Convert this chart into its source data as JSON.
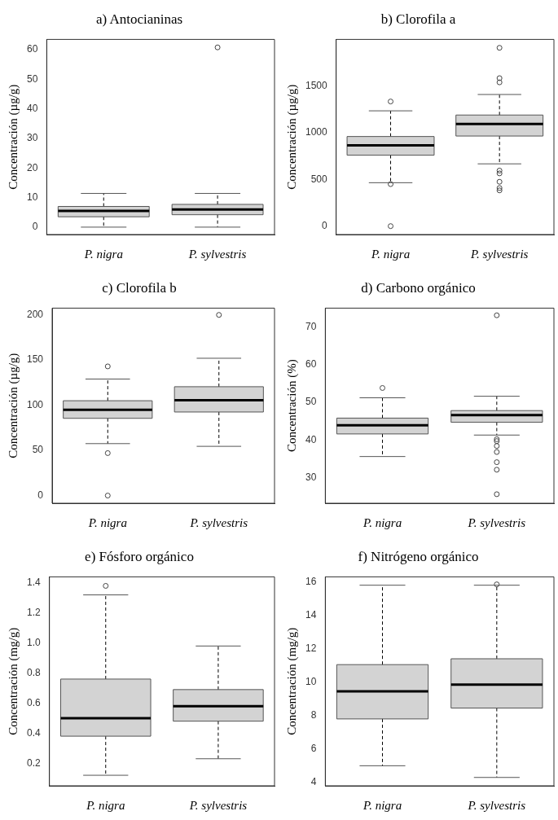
{
  "chart_data": [
    {
      "type": "box",
      "title": "a) Antocianinas",
      "ylabel": "Concentración (µg/g)",
      "categories": [
        "P. nigra",
        "P. sylvestris"
      ],
      "color": "#d3d3d3",
      "grid": false,
      "ylim": [
        -2.5,
        63.5
      ],
      "yticks": [
        0,
        10,
        20,
        30,
        40,
        50,
        60
      ],
      "boxes": [
        {
          "low": 0,
          "q1": 3.5,
          "median": 5.5,
          "q3": 7,
          "high": 11.4
        },
        {
          "low": 0,
          "q1": 4.2,
          "median": 6,
          "q3": 7.7,
          "high": 11.4,
          "outliers": [
            60.8
          ]
        }
      ]
    },
    {
      "type": "box",
      "title": "b) Clorofila a",
      "ylabel": "Concentración (µg/g)",
      "categories": [
        "P. nigra",
        "P. sylvestris"
      ],
      "color": "#d3d3d3",
      "grid": false,
      "ylim": [
        -90,
        2000
      ],
      "yticks": [
        0,
        500,
        1000,
        1500
      ],
      "boxes": [
        {
          "low": 465,
          "q1": 760,
          "median": 865,
          "q3": 960,
          "high": 1235,
          "outliers": [
            1335,
            450,
            0
          ]
        },
        {
          "low": 667,
          "q1": 965,
          "median": 1095,
          "q3": 1190,
          "high": 1410,
          "outliers": [
            1910,
            1585,
            1540,
            595,
            565,
            475,
            408,
            383
          ]
        }
      ]
    },
    {
      "type": "box",
      "title": "c) Clorofila b",
      "ylabel": "Concentración (µg/g)",
      "categories": [
        "P. nigra",
        "P. sylvestris"
      ],
      "color": "#d3d3d3",
      "grid": false,
      "ylim": [
        -8.5,
        207.5
      ],
      "yticks": [
        0,
        50,
        100,
        150,
        200
      ],
      "boxes": [
        {
          "low": 57.5,
          "q1": 85.5,
          "median": 95,
          "q3": 105,
          "high": 129,
          "outliers": [
            143,
            47,
            0
          ]
        },
        {
          "low": 54.5,
          "q1": 92.5,
          "median": 105.5,
          "q3": 120.5,
          "high": 152,
          "outliers": [
            200
          ]
        }
      ]
    },
    {
      "type": "box",
      "title": "d) Carbono orgánico",
      "ylabel": "Concentración (%)",
      "categories": [
        "P. nigra",
        "P. sylvestris"
      ],
      "color": "#d3d3d3",
      "grid": false,
      "ylim": [
        23.2,
        75
      ],
      "yticks": [
        30,
        40,
        50,
        60,
        70
      ],
      "boxes": [
        {
          "low": 35.6,
          "q1": 41.6,
          "median": 43.9,
          "q3": 45.8,
          "high": 51.2,
          "outliers": [
            53.8
          ]
        },
        {
          "low": 41.3,
          "q1": 44.7,
          "median": 46.6,
          "q3": 47.8,
          "high": 51.6,
          "outliers": [
            73.1,
            40.2,
            39.7,
            38.4,
            36.8,
            34.1,
            32.1,
            25.6
          ]
        }
      ]
    },
    {
      "type": "box",
      "title": "e) Fósforo orgánico",
      "ylabel": "Concentración (mg/g)",
      "categories": [
        "P. nigra",
        "P. sylvestris"
      ],
      "color": "#d3d3d3",
      "grid": false,
      "ylim": [
        0.05,
        1.44
      ],
      "yticks": [
        {
          "value": 0.2,
          "label": "0.2"
        },
        {
          "value": 0.4,
          "label": "0.4"
        },
        {
          "value": 0.6,
          "label": "0.6"
        },
        {
          "value": 0.8,
          "label": "0.8"
        },
        {
          "value": 1,
          "label": "1.0"
        },
        {
          "value": 1.2,
          "label": "1.2"
        },
        {
          "value": 1.4,
          "label": "1.4"
        }
      ],
      "boxes": [
        {
          "low": 0.12,
          "q1": 0.38,
          "median": 0.5,
          "q3": 0.76,
          "high": 1.32,
          "outliers": [
            1.38
          ]
        },
        {
          "low": 0.23,
          "q1": 0.48,
          "median": 0.58,
          "q3": 0.69,
          "high": 0.98
        }
      ]
    },
    {
      "type": "box",
      "title": "f) Nitrógeno orgánico",
      "ylabel": "Concentración (mg/g)",
      "categories": [
        "P. nigra",
        "P. sylvestris"
      ],
      "color": "#d3d3d3",
      "grid": false,
      "ylim": [
        3.8,
        16.3
      ],
      "yticks": [
        4,
        6,
        8,
        10,
        12,
        14,
        16
      ],
      "boxes": [
        {
          "low": 5,
          "q1": 7.8,
          "median": 9.45,
          "q3": 11.05,
          "high": 15.8
        },
        {
          "low": 4.3,
          "q1": 8.45,
          "median": 9.85,
          "q3": 11.4,
          "high": 15.8,
          "outliers": [
            15.85
          ]
        }
      ]
    }
  ]
}
